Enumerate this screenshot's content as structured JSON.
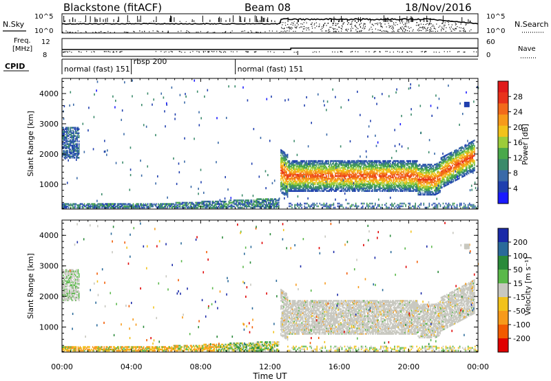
{
  "header": {
    "station": "Blackstone (fitACF)",
    "beam": "Beam 08",
    "date": "18/Nov/2016"
  },
  "top_panels": {
    "nsky_label": "N.Sky",
    "nsearch_label": "N.Search",
    "freq_label_1": "Freq.",
    "freq_label_2": "[MHz]",
    "nave_label": "Nave",
    "cpid_label": "CPID",
    "left_ticks_noise": [
      "10^5",
      "10^0"
    ],
    "right_ticks_noise": [
      "10^5",
      "10^0"
    ],
    "left_ticks_freq": [
      "12",
      "8"
    ],
    "right_ticks_nave": [
      "60",
      "0"
    ]
  },
  "cpid_segments": [
    {
      "label": "normal (fast) 151",
      "start_h": 0.0,
      "end_h": 4.0
    },
    {
      "label": "rbsp 200",
      "start_h": 4.0,
      "end_h": 10.0
    },
    {
      "label": "normal (fast) 151",
      "start_h": 10.0,
      "end_h": 24.0
    }
  ],
  "x_axis": {
    "label": "Time UT",
    "ticks": [
      "00:00",
      "04:00",
      "08:00",
      "12:00",
      "16:00",
      "20:00",
      "00:00"
    ],
    "range_h": [
      0,
      24
    ]
  },
  "chart_data": [
    {
      "type": "heatmap",
      "title": "Power",
      "ylabel": "Slant Range [km]",
      "ylim": [
        180,
        4500
      ],
      "y_ticks": [
        "1000",
        "2000",
        "3000",
        "4000"
      ],
      "colorbar": {
        "label": "Power [dB]",
        "ticks": [
          "4",
          "8",
          "12",
          "16",
          "20",
          "24",
          "28"
        ],
        "range": [
          0,
          32
        ]
      },
      "features": [
        {
          "name": "main scatter band",
          "t_start_h": 12.6,
          "t_end_h": 23.8,
          "range_center_km": 1250,
          "range_width_km": 500,
          "peak_db": 24
        },
        {
          "name": "ground band",
          "t_start_h": 0.0,
          "t_end_h": 12.5,
          "range_center_km": 350,
          "range_width_km": 200,
          "peak_db": 12
        },
        {
          "name": "early patch",
          "t_start_h": 0.0,
          "t_end_h": 1.0,
          "range_center_km": 2350,
          "range_width_km": 500,
          "peak_db": 6
        }
      ]
    },
    {
      "type": "heatmap",
      "title": "Velocity",
      "ylabel": "Slant Range [km]",
      "ylim": [
        180,
        4500
      ],
      "y_ticks": [
        "1000",
        "2000",
        "3000",
        "4000"
      ],
      "colorbar": {
        "label": "Velocity [m s⁻¹]",
        "ticks": [
          "200",
          "100",
          "50",
          "15",
          "-15",
          "-50",
          "-100",
          "-200"
        ],
        "range": [
          -250,
          250
        ]
      },
      "features": [
        {
          "name": "main scatter band",
          "t_start_h": 12.6,
          "t_end_h": 23.8,
          "range_center_km": 1300,
          "range_width_km": 550,
          "velocity_ms": 0
        },
        {
          "name": "ground band",
          "t_start_h": 0.0,
          "t_end_h": 12.5,
          "range_center_km": 350,
          "range_width_km": 200,
          "velocity_ms": -30
        },
        {
          "name": "early patch",
          "t_start_h": 0.0,
          "t_end_h": 1.0,
          "range_center_km": 2350,
          "range_width_km": 500,
          "velocity_ms": 0
        }
      ]
    }
  ],
  "colors": {
    "power_scale": [
      "#1a1aff",
      "#1f3fae",
      "#3a6aa8",
      "#3a8a6a",
      "#4aa84a",
      "#9ccc3a",
      "#f2c21a",
      "#f79a1a",
      "#f26a1a",
      "#e8321a",
      "#e01a1a"
    ],
    "velocity_scale": [
      "#e00000",
      "#f25a00",
      "#f79a1a",
      "#f2c21a",
      "#c8c8c0",
      "#5ab84a",
      "#2a8a3a",
      "#2a6a9a",
      "#1a2aa8"
    ]
  }
}
